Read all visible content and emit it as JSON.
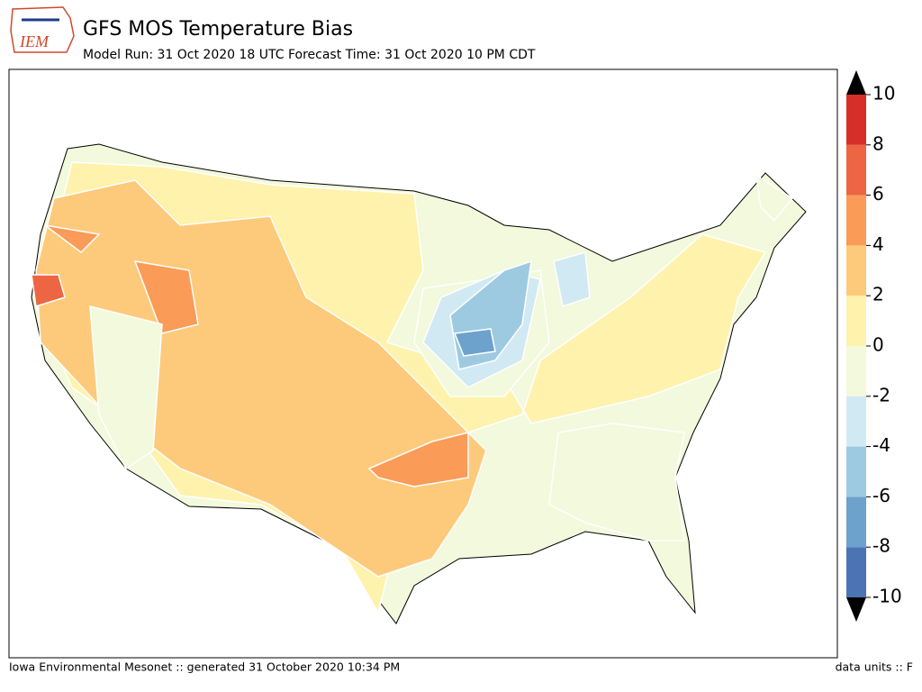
{
  "header": {
    "logo_text": "IEM",
    "title": "GFS MOS Temperature Bias",
    "subtitle": "Model Run: 31 Oct 2020 18 UTC Forecast Time: 31 Oct 2020 10 PM CDT"
  },
  "colorbar": {
    "ticks": [
      -10,
      -8,
      -6,
      -4,
      -2,
      0,
      2,
      4,
      6,
      8,
      10
    ],
    "colors": [
      "#4a74b4",
      "#6ca2cc",
      "#9ecae1",
      "#d1e9f2",
      "#f2f9dc",
      "#fff2ac",
      "#fdca7c",
      "#fa9b58",
      "#ee6543",
      "#d62f27"
    ]
  },
  "footer": {
    "left": "Iowa Environmental Mesonet :: generated 31 October 2020 10:34 PM",
    "right": "data units :: F"
  }
}
